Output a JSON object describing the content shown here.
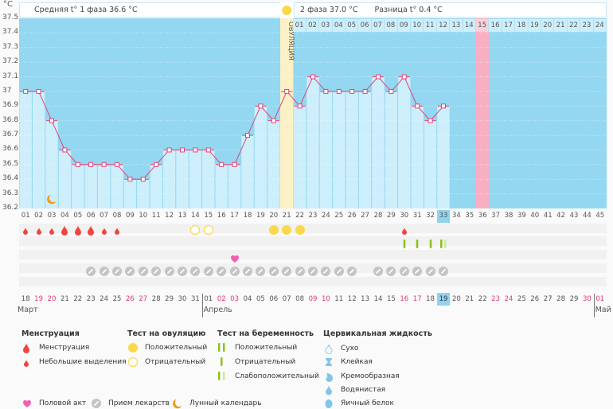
{
  "header": {
    "degree_unit": "°C",
    "phase1_label": "Средняя t° 1 фаза 36.6 °C",
    "phase2_label": "2 фаза 37.0 °C",
    "diff_label": "Разница t° 0.4 °C",
    "ovulation_label": "ОВУЛЯЦИЯ"
  },
  "chart_data": {
    "type": "line",
    "title": "",
    "ylabel": "°C",
    "ylim": [
      36.2,
      37.5
    ],
    "yticks": [
      "37.5",
      "37.4",
      "37.3",
      "37.2",
      "37.1",
      "37",
      "36.9",
      "36.8",
      "36.7",
      "36.6",
      "36.5",
      "36.4",
      "36.3",
      "36.2"
    ],
    "cycle_days": [
      "01",
      "02",
      "03",
      "04",
      "05",
      "06",
      "07",
      "08",
      "09",
      "10",
      "11",
      "12",
      "13",
      "14",
      "15",
      "16",
      "17",
      "18",
      "19",
      "20",
      "21",
      "22",
      "23",
      "24",
      "25",
      "26",
      "27",
      "28",
      "29",
      "30",
      "31",
      "32",
      "33",
      "34",
      "35",
      "36",
      "37",
      "38",
      "39",
      "40",
      "41",
      "42",
      "43",
      "44",
      "45"
    ],
    "series": [
      {
        "name": "Базальная температура",
        "values": [
          37.0,
          37.0,
          36.8,
          36.6,
          36.5,
          36.5,
          36.5,
          36.5,
          36.4,
          36.4,
          36.5,
          36.6,
          36.6,
          36.6,
          36.6,
          36.5,
          36.5,
          36.7,
          36.9,
          36.8,
          37.0,
          36.9,
          37.1,
          37.0,
          37.0,
          37.0,
          37.0,
          37.1,
          37.0,
          37.1,
          36.9,
          36.8,
          36.9
        ]
      }
    ],
    "ovulation_day": 21,
    "current_day": 33,
    "highlight_day": 36,
    "luteal_days": [
      "01",
      "02",
      "03",
      "04",
      "05",
      "06",
      "07",
      "08",
      "09",
      "10",
      "11",
      "12",
      "13",
      "14",
      "15",
      "16",
      "17",
      "18",
      "19",
      "20",
      "21",
      "22",
      "23",
      "24"
    ],
    "highlight_luteal_day": "15"
  },
  "calendar": {
    "dates": [
      "18",
      "19",
      "20",
      "21",
      "22",
      "23",
      "24",
      "25",
      "26",
      "27",
      "28",
      "29",
      "30",
      "31",
      "01",
      "02",
      "03",
      "04",
      "05",
      "06",
      "07",
      "08",
      "09",
      "10",
      "11",
      "12",
      "13",
      "14",
      "15",
      "16",
      "17",
      "18",
      "19",
      "20",
      "21",
      "22",
      "23",
      "24",
      "25",
      "26",
      "27",
      "28",
      "29",
      "30",
      "01"
    ],
    "weekend_indices": [
      1,
      2,
      8,
      9,
      15,
      16,
      22,
      23,
      29,
      30,
      36,
      37,
      43,
      44
    ],
    "today_index": 32,
    "months": [
      {
        "label": "Март",
        "start_index": 0
      },
      {
        "label": "Апрель",
        "start_index": 14
      },
      {
        "label": "Май",
        "start_index": 44
      }
    ]
  },
  "markers": {
    "menstruation_heavy": [
      4,
      5,
      6
    ],
    "menstruation_light": [
      1,
      2,
      3,
      7,
      8,
      30
    ],
    "ovulation_negative": [
      14,
      15
    ],
    "ovulation_positive": [
      20,
      21,
      22
    ],
    "pregnancy_negative": [
      30,
      31,
      32
    ],
    "pregnancy_weak": [
      33
    ],
    "intercourse": [
      17
    ],
    "medication": [
      6,
      7,
      8,
      9,
      10,
      11,
      12,
      13,
      14,
      15,
      16,
      17,
      18,
      19,
      20,
      21,
      22,
      23,
      24,
      25,
      26,
      28,
      29,
      30,
      31,
      32,
      33
    ],
    "moon": [
      3
    ]
  },
  "legend": {
    "menstruation": {
      "title": "Менструация",
      "items": [
        "Менструация",
        "Небольшие выделения"
      ]
    },
    "ovulation_test": {
      "title": "Тест на овуляцию",
      "items": [
        "Положительный",
        "Отрицательный"
      ]
    },
    "pregnancy_test": {
      "title": "Тест на беременность",
      "items": [
        "Положительный",
        "Отрицательный",
        "Слабоположительный"
      ]
    },
    "cervical": {
      "title": "Цервикальная жидкость",
      "items": [
        "Сухо",
        "Клейкая",
        "Кремообразная",
        "Водянистая",
        "Яичный белок"
      ]
    },
    "other": [
      "Половой акт",
      "Прием лекарств",
      "Лунный календарь"
    ]
  },
  "colors": {
    "chart_bg": "#93d7f1",
    "bar": "#cdeefb",
    "line": "#e0457a",
    "ovulation": "#fbf1c4",
    "highlight": "#f8afc3",
    "blood": "#f0443f",
    "ov_test": "#fbd84b",
    "preg": "#8dc21f",
    "preg_weak": "#cfe5a3",
    "pill": "#c4c4c4",
    "heart": "#f55cb3",
    "moon": "#f39a12",
    "cervical": "#82c4ea"
  }
}
